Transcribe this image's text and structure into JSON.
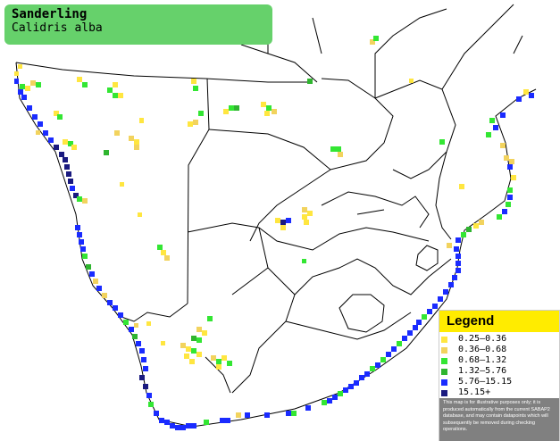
{
  "title": {
    "common_name": "Sanderling",
    "scientific_name": "Calidris alba"
  },
  "legend": {
    "heading": "Legend",
    "items": [
      {
        "label": "0.25–0.36",
        "color": "#ffe640"
      },
      {
        "label": "0.36–0.68",
        "color": "#f2d35e"
      },
      {
        "label": "0.68–1.32",
        "color": "#33e633"
      },
      {
        "label": "1.32–5.76",
        "color": "#2fb52f"
      },
      {
        "label": "5.76–15.15",
        "color": "#1a2bff"
      },
      {
        "label": "15.15+",
        "color": "#1a1a80"
      }
    ],
    "note": "This map is for illustrative purposes only; it is produced automatically from the current SABAP2 database, and may contain datapoints which will subsequently be removed during checking operations."
  }
}
